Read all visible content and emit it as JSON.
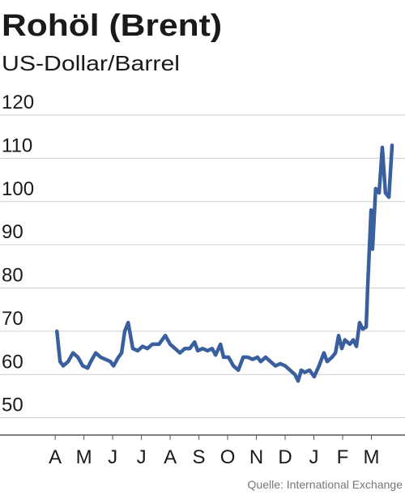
{
  "chart_data": {
    "type": "line",
    "title": "Rohöl (Brent)",
    "subtitle": "US-Dollar/Barrel",
    "source": "Quelle: International Exchange",
    "x": [
      0.06,
      0.17,
      0.28,
      0.45,
      0.62,
      0.79,
      0.96,
      1.13,
      1.24,
      1.41,
      1.58,
      1.75,
      1.92,
      2.03,
      2.2,
      2.31,
      2.42,
      2.54,
      2.7,
      2.87,
      3.04,
      3.21,
      3.38,
      3.61,
      3.83,
      4.0,
      4.17,
      4.34,
      4.51,
      4.68,
      4.85,
      4.96,
      5.13,
      5.3,
      5.46,
      5.58,
      5.75,
      5.86,
      6.03,
      6.2,
      6.37,
      6.54,
      6.7,
      6.87,
      7.04,
      7.15,
      7.32,
      7.49,
      7.66,
      7.83,
      8.0,
      8.17,
      8.34,
      8.45,
      8.56,
      8.68,
      8.85,
      9.01,
      9.18,
      9.35,
      9.46,
      9.63,
      9.75,
      9.86,
      9.97,
      10.08,
      10.25,
      10.37,
      10.48,
      10.59,
      10.7,
      10.82,
      10.87,
      10.99,
      11.04,
      11.15,
      11.27,
      11.38,
      11.49,
      11.61,
      11.72
    ],
    "series": [
      {
        "color": "#3a5f9e",
        "values": [
          70,
          63,
          62,
          63,
          65,
          64,
          62,
          61.5,
          63,
          65,
          64,
          63.5,
          63,
          62,
          64,
          65,
          70,
          72,
          66,
          65.5,
          66.5,
          66,
          67,
          67,
          69,
          67,
          66,
          65,
          66,
          66,
          67.5,
          65.5,
          66,
          65.5,
          66,
          64.5,
          67,
          64,
          64,
          62,
          61,
          64,
          64,
          63.5,
          64,
          63,
          64,
          63,
          62,
          62.5,
          62,
          61,
          60,
          58.5,
          61,
          60.5,
          61,
          59.5,
          62,
          65,
          63,
          64,
          65,
          69,
          66,
          68,
          67,
          68,
          66.5,
          72,
          70.5,
          71,
          80,
          98,
          89,
          103,
          102,
          112.5,
          102,
          101,
          113
        ]
      }
    ],
    "xlim": [
      -1.92,
      12.17
    ],
    "xticks": [
      {
        "value": 0,
        "label": "A"
      },
      {
        "value": 1,
        "label": "M"
      },
      {
        "value": 2,
        "label": "J"
      },
      {
        "value": 3,
        "label": "J"
      },
      {
        "value": 4,
        "label": "A"
      },
      {
        "value": 5,
        "label": "S"
      },
      {
        "value": 6,
        "label": "O"
      },
      {
        "value": 7,
        "label": "N"
      },
      {
        "value": 8,
        "label": "D"
      },
      {
        "value": 9,
        "label": "J"
      },
      {
        "value": 10,
        "label": "F"
      },
      {
        "value": 11,
        "label": "M"
      }
    ],
    "ylim": [
      46,
      120
    ],
    "yticks": [
      50,
      60,
      70,
      80,
      90,
      100,
      110,
      120
    ],
    "grid": true
  }
}
